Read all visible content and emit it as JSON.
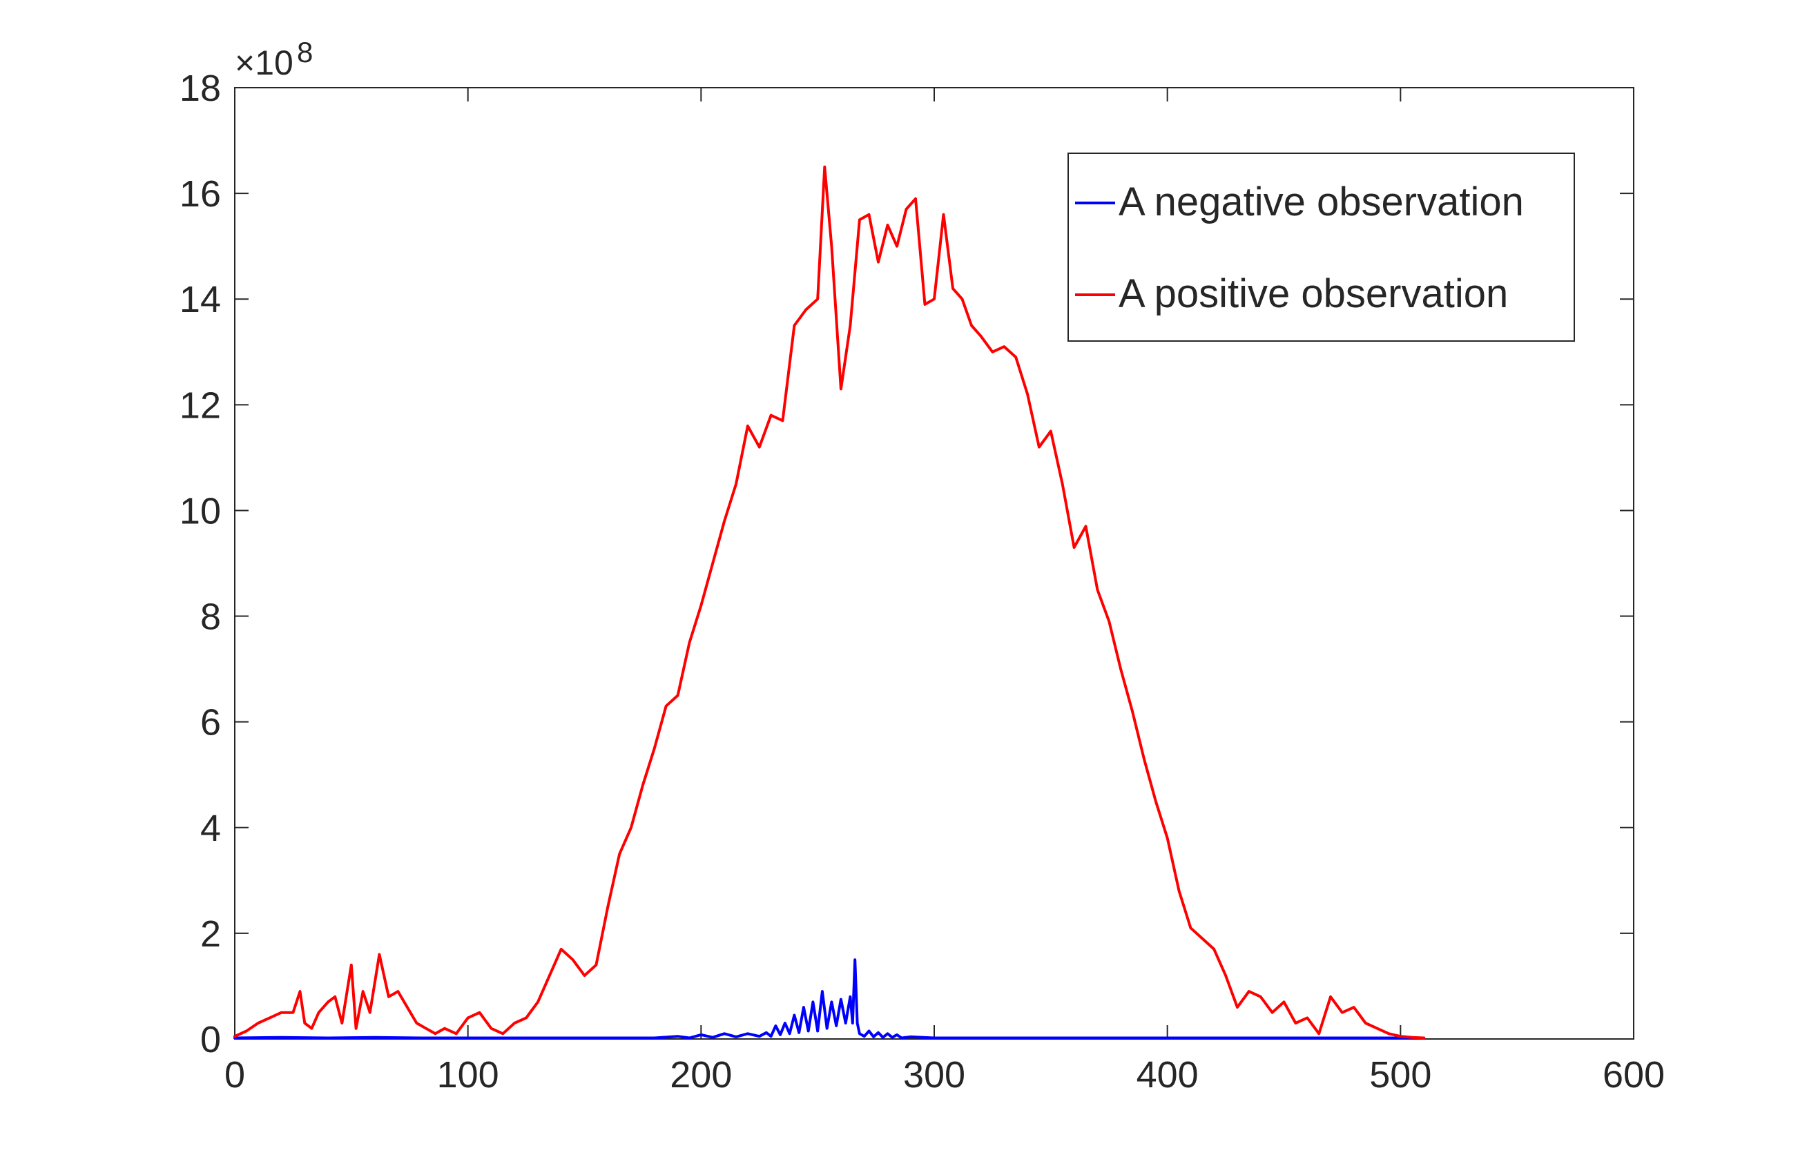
{
  "chart_data": {
    "type": "line",
    "title": "",
    "xlabel": "",
    "ylabel": "",
    "xlim": [
      0,
      600
    ],
    "ylim": [
      0,
      18
    ],
    "y_multiplier_label": "×10",
    "y_multiplier_exponent": "8",
    "xticks": [
      0,
      100,
      200,
      300,
      400,
      500,
      600
    ],
    "yticks": [
      0,
      2,
      4,
      6,
      8,
      10,
      12,
      14,
      16,
      18
    ],
    "xtick_labels": [
      "0",
      "100",
      "200",
      "300",
      "400",
      "500",
      "600"
    ],
    "ytick_labels": [
      "0",
      "2",
      "4",
      "6",
      "8",
      "10",
      "12",
      "14",
      "16",
      "18"
    ],
    "grid": false,
    "box": true,
    "legend_position": "top-right",
    "series": [
      {
        "name": "A negative observation",
        "color": "#0000ff",
        "x": [
          0,
          20,
          40,
          60,
          80,
          100,
          120,
          140,
          160,
          180,
          190,
          195,
          200,
          205,
          210,
          215,
          220,
          225,
          228,
          230,
          232,
          234,
          236,
          238,
          240,
          242,
          244,
          246,
          248,
          250,
          252,
          254,
          256,
          258,
          260,
          262,
          264,
          265,
          266,
          267,
          268,
          270,
          272,
          274,
          276,
          278,
          280,
          282,
          284,
          286,
          290,
          300,
          320,
          340,
          360,
          380,
          400,
          420,
          440,
          460,
          480,
          500,
          510
        ],
        "values": [
          0.02,
          0.03,
          0.02,
          0.03,
          0.02,
          0.02,
          0.02,
          0.02,
          0.02,
          0.02,
          0.05,
          0.02,
          0.08,
          0.03,
          0.1,
          0.04,
          0.1,
          0.05,
          0.12,
          0.05,
          0.25,
          0.08,
          0.3,
          0.1,
          0.45,
          0.12,
          0.6,
          0.15,
          0.7,
          0.15,
          0.9,
          0.2,
          0.7,
          0.25,
          0.75,
          0.3,
          0.8,
          0.3,
          1.5,
          0.3,
          0.1,
          0.05,
          0.15,
          0.04,
          0.12,
          0.03,
          0.1,
          0.03,
          0.08,
          0.02,
          0.04,
          0.02,
          0.02,
          0.02,
          0.02,
          0.02,
          0.02,
          0.02,
          0.02,
          0.02,
          0.02,
          0.02,
          0.02
        ]
      },
      {
        "name": "A positive observation",
        "color": "#ff0000",
        "x": [
          0,
          5,
          10,
          15,
          20,
          25,
          28,
          30,
          33,
          36,
          40,
          43,
          46,
          50,
          52,
          55,
          58,
          62,
          66,
          70,
          74,
          78,
          82,
          86,
          90,
          95,
          100,
          105,
          110,
          115,
          120,
          125,
          130,
          135,
          140,
          145,
          150,
          155,
          160,
          165,
          170,
          175,
          180,
          185,
          190,
          195,
          200,
          205,
          210,
          215,
          220,
          225,
          230,
          235,
          240,
          245,
          250,
          253,
          256,
          260,
          264,
          268,
          272,
          276,
          280,
          284,
          288,
          292,
          296,
          300,
          304,
          308,
          312,
          316,
          320,
          325,
          330,
          335,
          340,
          345,
          350,
          355,
          360,
          365,
          370,
          375,
          380,
          385,
          390,
          395,
          400,
          405,
          410,
          415,
          420,
          425,
          430,
          435,
          440,
          445,
          450,
          455,
          460,
          465,
          470,
          475,
          480,
          485,
          490,
          495,
          500,
          505,
          510
        ],
        "values": [
          0.05,
          0.15,
          0.3,
          0.4,
          0.5,
          0.5,
          0.9,
          0.3,
          0.2,
          0.5,
          0.7,
          0.8,
          0.3,
          1.4,
          0.2,
          0.9,
          0.5,
          1.6,
          0.8,
          0.9,
          0.6,
          0.3,
          0.2,
          0.1,
          0.2,
          0.1,
          0.4,
          0.5,
          0.2,
          0.1,
          0.3,
          0.4,
          0.7,
          1.2,
          1.7,
          1.5,
          1.2,
          1.4,
          2.5,
          3.5,
          4.0,
          4.8,
          5.5,
          6.3,
          6.5,
          7.5,
          8.2,
          9.0,
          9.8,
          10.5,
          11.6,
          11.2,
          11.8,
          11.7,
          13.5,
          13.8,
          14.0,
          16.5,
          15.0,
          12.3,
          13.5,
          15.5,
          15.6,
          14.7,
          15.4,
          15.0,
          15.7,
          15.9,
          13.9,
          14.0,
          15.6,
          14.2,
          14.0,
          13.5,
          13.3,
          13.0,
          13.1,
          12.9,
          12.2,
          11.2,
          11.5,
          10.5,
          9.3,
          9.7,
          8.5,
          7.9,
          7.0,
          6.2,
          5.3,
          4.5,
          3.8,
          2.8,
          2.1,
          1.9,
          1.7,
          1.2,
          0.6,
          0.9,
          0.8,
          0.5,
          0.7,
          0.3,
          0.4,
          0.1,
          0.8,
          0.5,
          0.6,
          0.3,
          0.2,
          0.1,
          0.05,
          0.03,
          0.02
        ]
      }
    ]
  }
}
